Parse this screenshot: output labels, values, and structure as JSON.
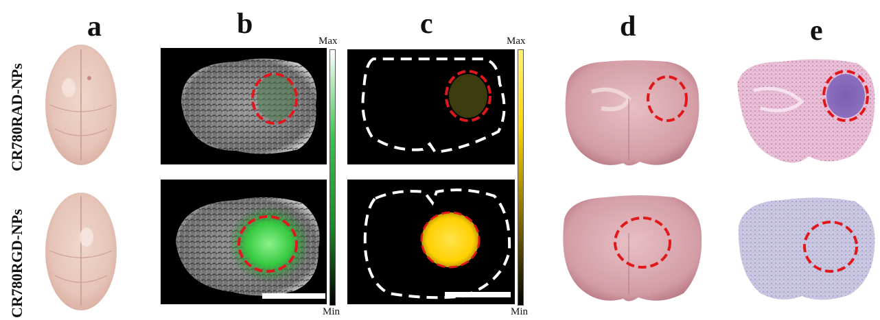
{
  "columns": {
    "a": "a",
    "b": "b",
    "c": "c",
    "d": "d",
    "e": "e"
  },
  "rows": {
    "top": "CR780RAD-NPs",
    "bottom": "CR780RGD-NPs"
  },
  "colorbars": {
    "green": {
      "max": "Max",
      "min": "Min"
    },
    "yellow": {
      "max": "Max",
      "min": "Min"
    }
  },
  "colors": {
    "roi_circle": "#e0181c",
    "boundary_dash": "#ffffff",
    "green_signal": "#35c940",
    "yellow_signal": "#ffd400",
    "he_pink": "#d98fb8",
    "he_purple": "#7a5fb0"
  }
}
